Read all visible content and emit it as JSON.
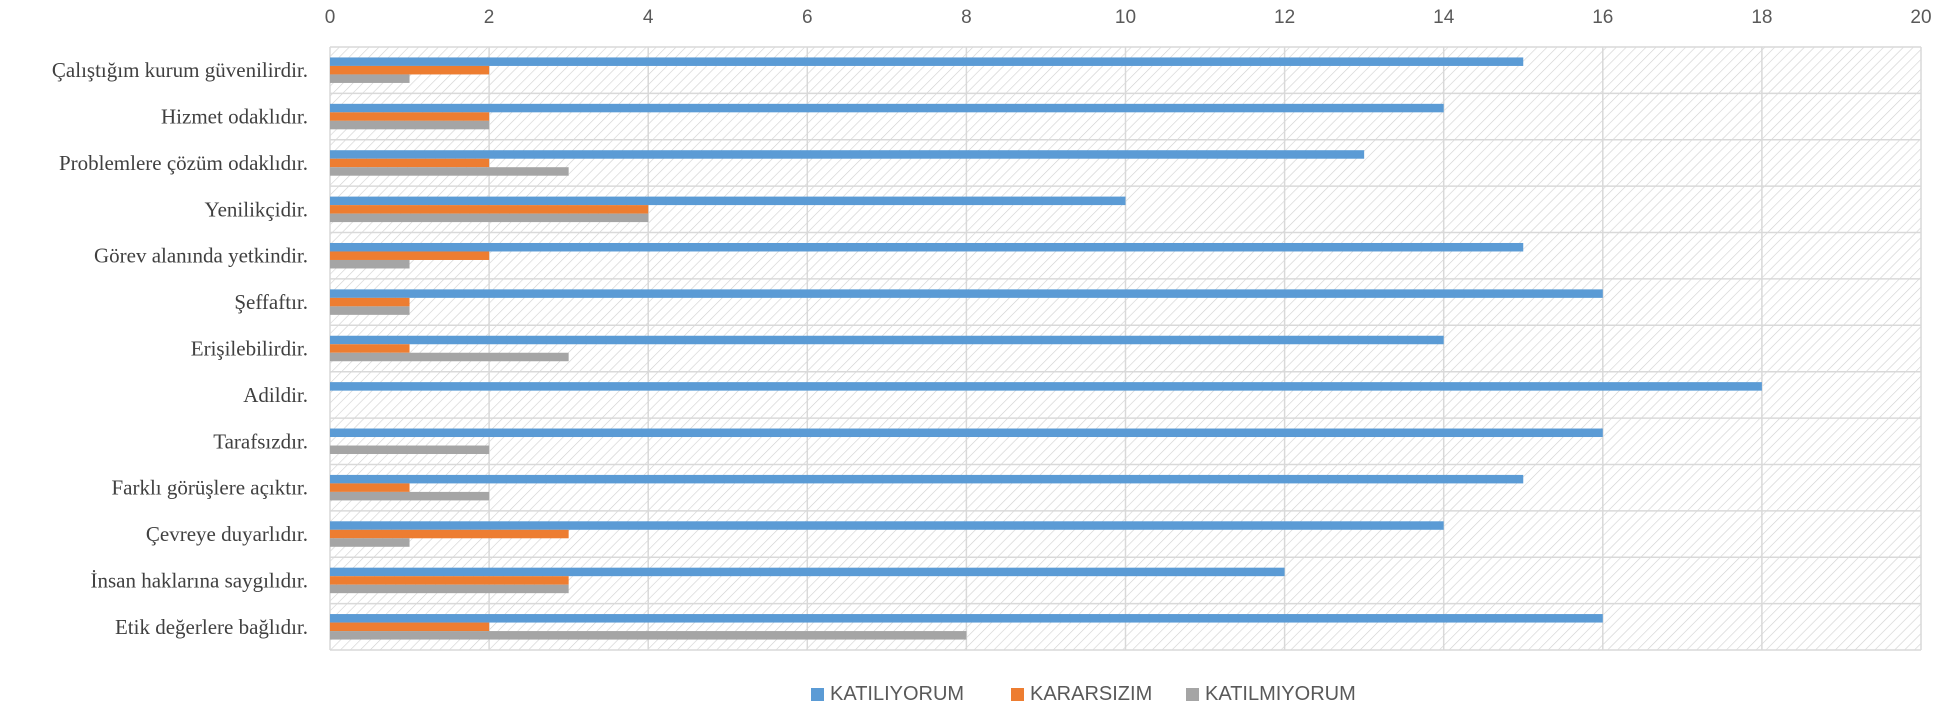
{
  "chart_data": {
    "type": "bar",
    "orientation": "horizontal",
    "categories": [
      "Çalıştığım kurum güvenilirdir.",
      "Hizmet odaklıdır.",
      "Problemlere çözüm odaklıdır.",
      "Yenilikçidir.",
      "Görev alanında yetkindir.",
      "Şeffaftır.",
      "Erişilebilirdir.",
      "Adildir.",
      "Tarafsızdır.",
      "Farklı görüşlere açıktır.",
      "Çevreye duyarlıdır.",
      "İnsan haklarına saygılıdır.",
      "Etik değerlere bağlıdır."
    ],
    "series": [
      {
        "name": "KATILIYORUM",
        "color": "#5B9BD5",
        "values": [
          15,
          14,
          13,
          10,
          15,
          16,
          14,
          18,
          16,
          15,
          14,
          12,
          16
        ]
      },
      {
        "name": "KARARSIZIM",
        "color": "#ED7D31",
        "values": [
          2,
          2,
          2,
          4,
          2,
          1,
          1,
          0,
          0,
          1,
          3,
          3,
          2
        ]
      },
      {
        "name": "KATILMIYORUM",
        "color": "#A5A5A5",
        "values": [
          1,
          2,
          3,
          4,
          1,
          1,
          3,
          0,
          2,
          2,
          1,
          3,
          8
        ]
      }
    ],
    "xlim": [
      0,
      20
    ],
    "x_ticks": [
      "0",
      "2",
      "4",
      "6",
      "8",
      "10",
      "12",
      "14",
      "16",
      "18",
      "20"
    ],
    "x_axis_position": "top",
    "grid": true,
    "plot_background": "diagonal hatch",
    "legend_position": "bottom",
    "title": "",
    "xlabel": "",
    "ylabel": ""
  }
}
